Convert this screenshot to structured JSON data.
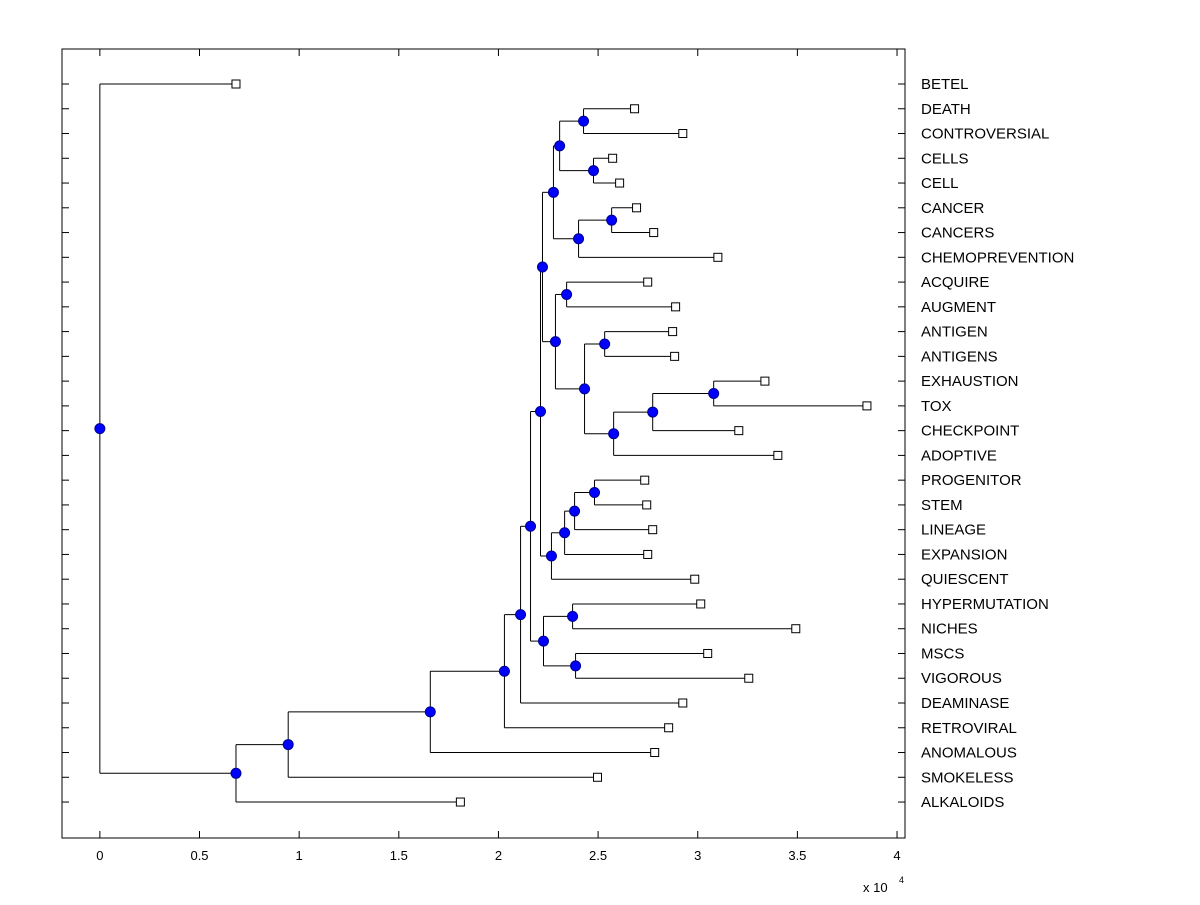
{
  "chart_data": {
    "type": "dendrogram",
    "title": "",
    "xlabel": "",
    "x_exponent_label": {
      "base": "x 10",
      "exp": "4"
    },
    "xlim": [
      -0.19,
      4.04
    ],
    "xticks": [
      0,
      0.5,
      1,
      1.5,
      2,
      2.5,
      3,
      3.5,
      4
    ],
    "xtick_labels": [
      "0",
      "0.5",
      "1",
      "1.5",
      "2",
      "2.5",
      "3",
      "3.5",
      "4"
    ],
    "colors": {
      "node": "#0000ff",
      "leaf": "#ffffff",
      "line": "#000000"
    },
    "leaves": [
      {
        "name": "BETEL",
        "x": 0.683
      },
      {
        "name": "DEATH",
        "x": 2.683
      },
      {
        "name": "CONTROVERSIAL",
        "x": 2.925
      },
      {
        "name": "CELLS",
        "x": 2.573
      },
      {
        "name": "CELL",
        "x": 2.608
      },
      {
        "name": "CANCER",
        "x": 2.693
      },
      {
        "name": "CANCERS",
        "x": 2.779
      },
      {
        "name": "CHEMOPREVENTION",
        "x": 3.101
      },
      {
        "name": "ACQUIRE",
        "x": 2.749
      },
      {
        "name": "AUGMENT",
        "x": 2.889
      },
      {
        "name": "ANTIGEN",
        "x": 2.874
      },
      {
        "name": "ANTIGENS",
        "x": 2.884
      },
      {
        "name": "EXHAUSTION",
        "x": 3.337
      },
      {
        "name": "TOX",
        "x": 3.849
      },
      {
        "name": "CHECKPOINT",
        "x": 3.206
      },
      {
        "name": "ADOPTIVE",
        "x": 3.402
      },
      {
        "name": "PROGENITOR",
        "x": 2.734
      },
      {
        "name": "STEM",
        "x": 2.744
      },
      {
        "name": "LINEAGE",
        "x": 2.774
      },
      {
        "name": "EXPANSION",
        "x": 2.749
      },
      {
        "name": "QUIESCENT",
        "x": 2.985
      },
      {
        "name": "HYPERMUTATION",
        "x": 3.015
      },
      {
        "name": "NICHES",
        "x": 3.492
      },
      {
        "name": "MSCS",
        "x": 3.05
      },
      {
        "name": "VIGOROUS",
        "x": 3.256
      },
      {
        "name": "DEAMINASE",
        "x": 2.925
      },
      {
        "name": "RETROVIRAL",
        "x": 2.854
      },
      {
        "name": "ANOMALOUS",
        "x": 2.784
      },
      {
        "name": "SMOKELESS",
        "x": 2.497
      },
      {
        "name": "ALKALOIDS",
        "x": 1.809
      }
    ],
    "nodes": [
      {
        "id": "root",
        "x": 0.0,
        "children": [
          "L0",
          "nA"
        ]
      },
      {
        "id": "nA",
        "x": 0.683,
        "children": [
          "nB",
          "L29"
        ]
      },
      {
        "id": "nB",
        "x": 0.945,
        "children": [
          "nC",
          "L28"
        ]
      },
      {
        "id": "nC",
        "x": 1.658,
        "children": [
          "nD",
          "L27"
        ]
      },
      {
        "id": "nD",
        "x": 2.03,
        "children": [
          "nE",
          "L26"
        ]
      },
      {
        "id": "nE",
        "x": 2.111,
        "children": [
          "nF",
          "L25"
        ]
      },
      {
        "id": "nF",
        "x": 2.161,
        "children": [
          "nG",
          "nH"
        ]
      },
      {
        "id": "nH",
        "x": 2.226,
        "children": [
          "nI",
          "nJ"
        ]
      },
      {
        "id": "nI",
        "x": 2.372,
        "children": [
          "L21",
          "L22"
        ]
      },
      {
        "id": "nJ",
        "x": 2.387,
        "children": [
          "L23",
          "L24"
        ]
      },
      {
        "id": "nG",
        "x": 2.211,
        "children": [
          "nK",
          "nL"
        ]
      },
      {
        "id": "nL",
        "x": 2.266,
        "children": [
          "nM",
          "L20"
        ]
      },
      {
        "id": "nM",
        "x": 2.332,
        "children": [
          "nN",
          "L19"
        ]
      },
      {
        "id": "nN",
        "x": 2.382,
        "children": [
          "nO",
          "L18"
        ]
      },
      {
        "id": "nO",
        "x": 2.482,
        "children": [
          "L16",
          "L17"
        ]
      },
      {
        "id": "nK",
        "x": 2.221,
        "children": [
          "nP",
          "nQ"
        ]
      },
      {
        "id": "nP",
        "x": 2.276,
        "children": [
          "nR",
          "nS"
        ]
      },
      {
        "id": "nR",
        "x": 2.307,
        "children": [
          "nT",
          "nU"
        ]
      },
      {
        "id": "nT",
        "x": 2.427,
        "children": [
          "L1",
          "L2"
        ]
      },
      {
        "id": "nU",
        "x": 2.477,
        "children": [
          "L3",
          "L4"
        ]
      },
      {
        "id": "nS",
        "x": 2.402,
        "children": [
          "nV",
          "L7"
        ]
      },
      {
        "id": "nV",
        "x": 2.568,
        "children": [
          "L5",
          "L6"
        ]
      },
      {
        "id": "nQ",
        "x": 2.286,
        "children": [
          "nW",
          "nX"
        ]
      },
      {
        "id": "nW",
        "x": 2.342,
        "children": [
          "L8",
          "L9"
        ]
      },
      {
        "id": "nX",
        "x": 2.432,
        "children": [
          "nY",
          "nZ"
        ]
      },
      {
        "id": "nY",
        "x": 2.533,
        "children": [
          "L10",
          "L11"
        ]
      },
      {
        "id": "nZ",
        "x": 2.578,
        "children": [
          "nAA",
          "L15"
        ]
      },
      {
        "id": "nAA",
        "x": 2.774,
        "children": [
          "nAB",
          "L14"
        ]
      },
      {
        "id": "nAB",
        "x": 3.08,
        "children": [
          "L12",
          "L13"
        ]
      }
    ]
  }
}
